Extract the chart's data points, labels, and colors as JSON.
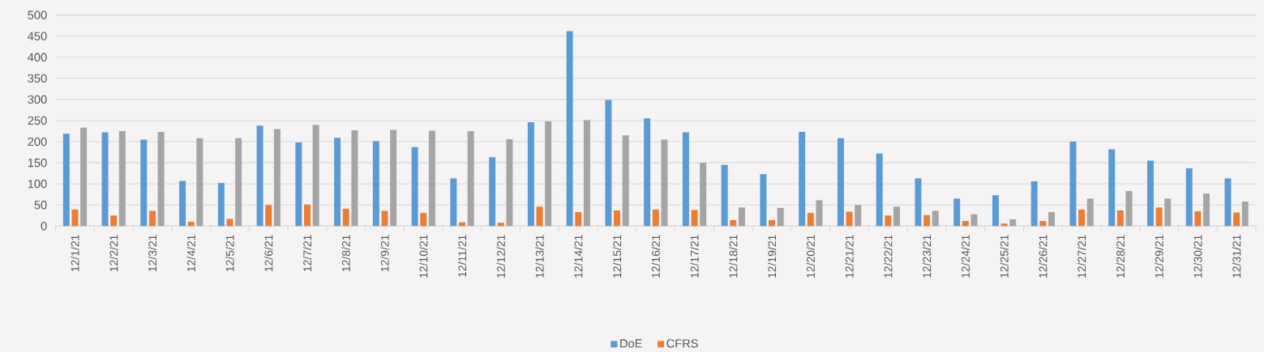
{
  "chart_data": {
    "type": "bar",
    "categories": [
      "12/1/21",
      "12/2/21",
      "12/3/21",
      "12/4/21",
      "12/5/21",
      "12/6/21",
      "12/7/21",
      "12/8/21",
      "12/9/21",
      "12/10/21",
      "12/11/21",
      "12/12/21",
      "12/13/21",
      "12/14/21",
      "12/15/21",
      "12/16/21",
      "12/17/21",
      "12/18/21",
      "12/19/21",
      "12/20/21",
      "12/21/21",
      "12/22/21",
      "12/23/21",
      "12/24/21",
      "12/25/21",
      "12/26/21",
      "12/27/21",
      "12/28/21",
      "12/29/21",
      "12/30/21",
      "12/31/21"
    ],
    "series": [
      {
        "name": "DoE",
        "color": "#5b9bd5",
        "values": [
          219,
          222,
          205,
          107,
          102,
          238,
          198,
          209,
          201,
          187,
          113,
          163,
          246,
          462,
          299,
          255,
          222,
          145,
          123,
          223,
          208,
          172,
          113,
          65,
          73,
          106,
          200,
          182,
          155,
          137,
          113
        ]
      },
      {
        "name": "CFRS",
        "color": "#ed7d31",
        "values": [
          39,
          25,
          36,
          10,
          17,
          50,
          51,
          41,
          36,
          31,
          9,
          8,
          46,
          33,
          37,
          39,
          38,
          14,
          14,
          31,
          34,
          25,
          26,
          12,
          6,
          12,
          39,
          37,
          44,
          35,
          32
        ]
      },
      {
        "color": "#a5a5a5",
        "values": [
          233,
          225,
          223,
          208,
          208,
          230,
          240,
          227,
          228,
          226,
          225,
          206,
          248,
          251,
          215,
          205,
          150,
          44,
          43,
          61,
          50,
          46,
          36,
          28,
          16,
          33,
          65,
          83,
          65,
          77,
          58
        ]
      }
    ],
    "ylim": [
      0,
      500
    ],
    "yticks": [
      0,
      50,
      100,
      150,
      200,
      250,
      300,
      350,
      400,
      450,
      500
    ],
    "grid": "y",
    "legend": "bottom"
  }
}
